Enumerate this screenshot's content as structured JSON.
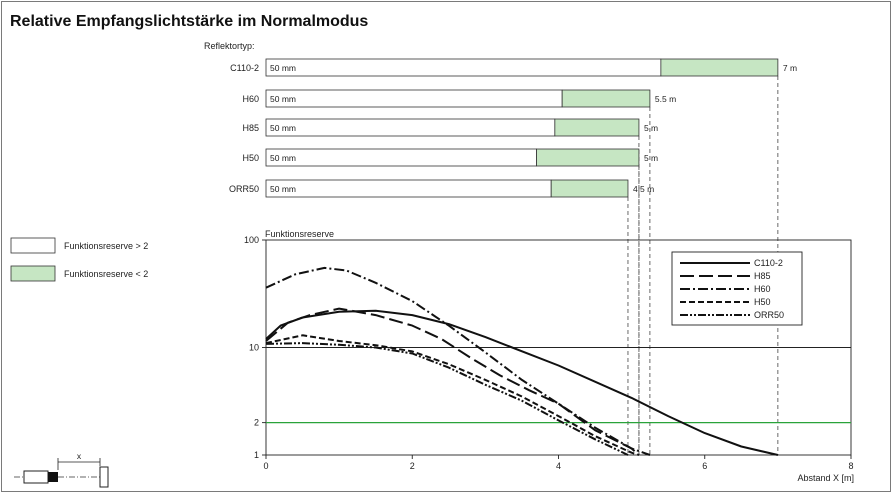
{
  "chart_data": {
    "type": "line",
    "title": "Relative Empfangslichtstärke im Normalmodus",
    "bar_panel": {
      "caption": "Reflektortyp:",
      "rows": [
        {
          "name": "C110-2",
          "min_label": "50 mm",
          "max_label": "7 m",
          "green_start": 5.4,
          "end": 7.0
        },
        {
          "name": "H60",
          "min_label": "50 mm",
          "max_label": "5.5 m",
          "green_start": 4.05,
          "end": 5.25
        },
        {
          "name": "H85",
          "min_label": "50 mm",
          "max_label": "5 m",
          "green_start": 3.95,
          "end": 5.1
        },
        {
          "name": "H50",
          "min_label": "50 mm",
          "max_label": "5 m",
          "green_start": 3.7,
          "end": 5.1
        },
        {
          "name": "ORR50",
          "min_label": "50 mm",
          "max_label": "4.5 m",
          "green_start": 3.9,
          "end": 4.95
        }
      ]
    },
    "legend_boxes": [
      {
        "label": "Funktionsreserve > 2",
        "color": "#ffffff"
      },
      {
        "label": "Funktionsreserve < 2",
        "color": "#c6e6c3"
      }
    ],
    "ylabel": "Funktionsreserve",
    "xlabel": "Abstand X [m]",
    "xlim": [
      0,
      8
    ],
    "ylim": [
      1,
      100
    ],
    "y_scale": "log",
    "x_ticks": [
      0,
      2,
      4,
      6,
      8
    ],
    "x_tick_labels": [
      "0",
      "2",
      "4",
      "6",
      "8"
    ],
    "y_ticks": [
      1,
      2,
      10,
      100
    ],
    "y_tick_labels": [
      "1",
      "2",
      "10",
      "100"
    ],
    "threshold": {
      "value": 2,
      "color": "#2aa33a"
    },
    "series": [
      {
        "name": "C110-2",
        "dash": "solid",
        "points": [
          [
            0,
            12
          ],
          [
            0.2,
            16
          ],
          [
            0.5,
            19
          ],
          [
            1,
            21.5
          ],
          [
            1.5,
            22
          ],
          [
            2,
            20
          ],
          [
            2.5,
            16.5
          ],
          [
            3,
            12.5
          ],
          [
            4,
            6.8
          ],
          [
            5,
            3.4
          ],
          [
            5.5,
            2.3
          ],
          [
            6,
            1.6
          ],
          [
            6.5,
            1.2
          ],
          [
            7,
            1
          ]
        ]
      },
      {
        "name": "H85",
        "dash": "long",
        "points": [
          [
            0,
            11.5
          ],
          [
            0.3,
            17
          ],
          [
            0.6,
            20
          ],
          [
            1,
            23
          ],
          [
            1.5,
            20
          ],
          [
            2,
            16
          ],
          [
            2.4,
            12
          ],
          [
            2.8,
            8
          ],
          [
            3.2,
            5.5
          ],
          [
            3.6,
            4
          ],
          [
            4,
            3
          ],
          [
            4.5,
            1.7
          ],
          [
            5,
            1.15
          ],
          [
            5.1,
            1
          ]
        ]
      },
      {
        "name": "H60",
        "dash": "dashdot",
        "points": [
          [
            0,
            36
          ],
          [
            0.4,
            48
          ],
          [
            0.8,
            55
          ],
          [
            1.1,
            52
          ],
          [
            1.5,
            40
          ],
          [
            2,
            27
          ],
          [
            2.5,
            16
          ],
          [
            3,
            9
          ],
          [
            3.5,
            5
          ],
          [
            4,
            3
          ],
          [
            4.5,
            1.8
          ],
          [
            5,
            1.15
          ],
          [
            5.25,
            1
          ]
        ]
      },
      {
        "name": "H50",
        "dash": "short",
        "points": [
          [
            0,
            11
          ],
          [
            0.5,
            13
          ],
          [
            1,
            11.5
          ],
          [
            1.5,
            10.5
          ],
          [
            2,
            9.2
          ],
          [
            2.5,
            7
          ],
          [
            3,
            5
          ],
          [
            3.5,
            3.5
          ],
          [
            4,
            2.3
          ],
          [
            4.5,
            1.5
          ],
          [
            5,
            1.05
          ],
          [
            5.1,
            1
          ]
        ]
      },
      {
        "name": "ORR50",
        "dash": "dashdotdot",
        "points": [
          [
            0,
            10.8
          ],
          [
            0.5,
            11
          ],
          [
            1,
            10.6
          ],
          [
            1.5,
            10
          ],
          [
            2,
            8.8
          ],
          [
            2.5,
            6.5
          ],
          [
            3,
            4.5
          ],
          [
            3.5,
            3.2
          ],
          [
            4,
            2.1
          ],
          [
            4.5,
            1.4
          ],
          [
            4.95,
            1
          ]
        ]
      }
    ]
  }
}
